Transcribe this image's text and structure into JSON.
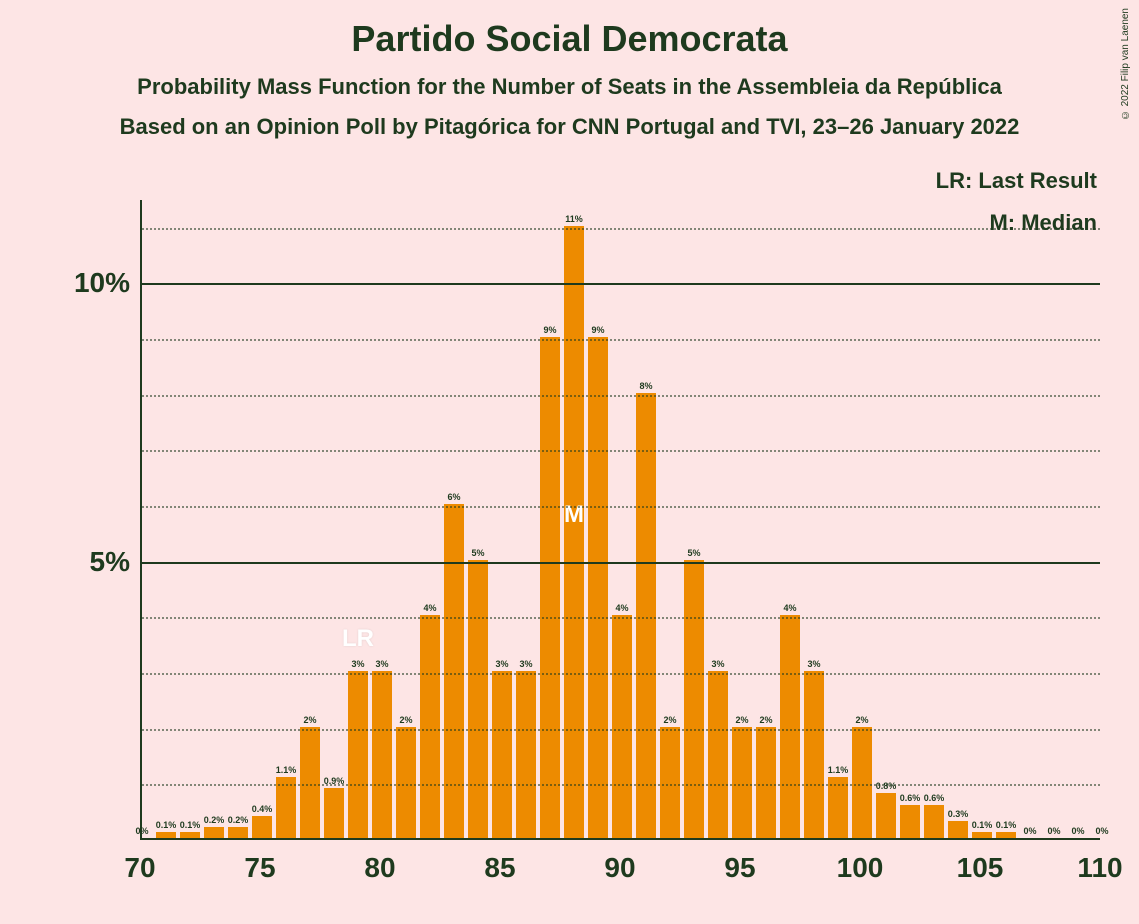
{
  "title": "Partido Social Democrata",
  "subtitle1": "Probability Mass Function for the Number of Seats in the Assembleia da República",
  "subtitle2": "Based on an Opinion Poll by Pitagórica for CNN Portugal and TVI, 23–26 January 2022",
  "copyright": "© 2022 Filip van Laenen",
  "legend": {
    "lr": "LR: Last Result",
    "m": "M: Median"
  },
  "colors": {
    "background": "#fde5e5",
    "text": "#1e3a1e",
    "bar": "#ed8b00",
    "bar_text": "#ffffff"
  },
  "chart": {
    "type": "bar",
    "x_min": 70,
    "x_max": 110,
    "x_tick_step": 5,
    "y_min": 0,
    "y_max": 11.5,
    "y_major_ticks": [
      5,
      10
    ],
    "y_minor_step": 1,
    "bar_width_ratio": 0.85,
    "median_seat": 88,
    "lr_seat": 79,
    "bars": [
      {
        "seat": 70,
        "value": 0,
        "label": "0%"
      },
      {
        "seat": 71,
        "value": 0.1,
        "label": "0.1%"
      },
      {
        "seat": 72,
        "value": 0.1,
        "label": "0.1%"
      },
      {
        "seat": 73,
        "value": 0.2,
        "label": "0.2%"
      },
      {
        "seat": 74,
        "value": 0.2,
        "label": "0.2%"
      },
      {
        "seat": 75,
        "value": 0.4,
        "label": "0.4%"
      },
      {
        "seat": 76,
        "value": 1.1,
        "label": "1.1%"
      },
      {
        "seat": 77,
        "value": 2,
        "label": "2%"
      },
      {
        "seat": 78,
        "value": 0.9,
        "label": "0.9%"
      },
      {
        "seat": 79,
        "value": 3,
        "label": "3%"
      },
      {
        "seat": 80,
        "value": 3,
        "label": "3%"
      },
      {
        "seat": 81,
        "value": 2,
        "label": "2%"
      },
      {
        "seat": 82,
        "value": 4,
        "label": "4%"
      },
      {
        "seat": 83,
        "value": 6,
        "label": "6%"
      },
      {
        "seat": 84,
        "value": 5,
        "label": "5%"
      },
      {
        "seat": 85,
        "value": 3,
        "label": "3%"
      },
      {
        "seat": 86,
        "value": 3,
        "label": "3%"
      },
      {
        "seat": 87,
        "value": 9,
        "label": "9%"
      },
      {
        "seat": 88,
        "value": 11,
        "label": "11%"
      },
      {
        "seat": 89,
        "value": 9,
        "label": "9%"
      },
      {
        "seat": 90,
        "value": 4,
        "label": "4%"
      },
      {
        "seat": 91,
        "value": 8,
        "label": "8%"
      },
      {
        "seat": 92,
        "value": 2,
        "label": "2%"
      },
      {
        "seat": 93,
        "value": 5,
        "label": "5%"
      },
      {
        "seat": 94,
        "value": 3,
        "label": "3%"
      },
      {
        "seat": 95,
        "value": 2,
        "label": "2%"
      },
      {
        "seat": 96,
        "value": 2,
        "label": "2%"
      },
      {
        "seat": 97,
        "value": 4,
        "label": "4%"
      },
      {
        "seat": 98,
        "value": 3,
        "label": "3%"
      },
      {
        "seat": 99,
        "value": 1.1,
        "label": "1.1%"
      },
      {
        "seat": 100,
        "value": 2,
        "label": "2%"
      },
      {
        "seat": 101,
        "value": 0.8,
        "label": "0.8%"
      },
      {
        "seat": 102,
        "value": 0.6,
        "label": "0.6%"
      },
      {
        "seat": 103,
        "value": 0.6,
        "label": "0.6%"
      },
      {
        "seat": 104,
        "value": 0.3,
        "label": "0.3%"
      },
      {
        "seat": 105,
        "value": 0.1,
        "label": "0.1%"
      },
      {
        "seat": 106,
        "value": 0.1,
        "label": "0.1%"
      },
      {
        "seat": 107,
        "value": 0,
        "label": "0%"
      },
      {
        "seat": 108,
        "value": 0,
        "label": "0%"
      },
      {
        "seat": 109,
        "value": 0,
        "label": "0%"
      },
      {
        "seat": 110,
        "value": 0,
        "label": "0%"
      }
    ]
  }
}
